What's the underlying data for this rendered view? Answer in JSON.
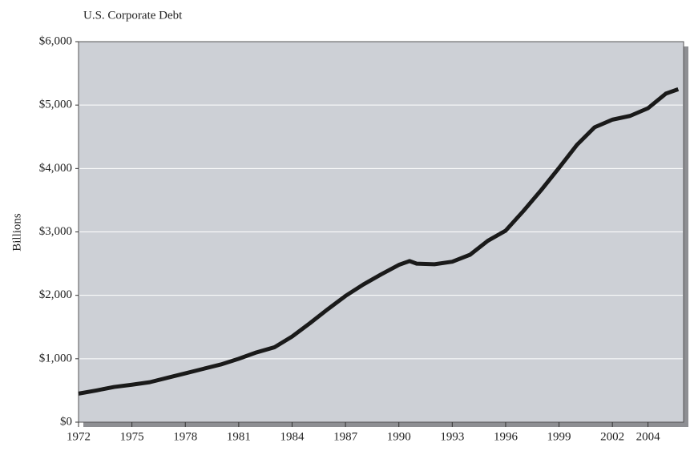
{
  "chart_data": {
    "type": "line",
    "title": "U.S. Corporate Debt",
    "y_label": "Billions",
    "x": [
      1972,
      1973,
      1974,
      1975,
      1976,
      1977,
      1978,
      1979,
      1980,
      1981,
      1982,
      1983,
      1984,
      1985,
      1986,
      1987,
      1988,
      1989,
      1990,
      1990.6,
      1991,
      1992,
      1993,
      1994,
      1995,
      1996,
      1997,
      1998,
      1999,
      2000,
      2001,
      2002,
      2003,
      2004,
      2005,
      2005.7
    ],
    "series": [
      {
        "name": "U.S. Corporate Debt",
        "color": "#1a1a1a",
        "values": [
          450,
          500,
          555,
          590,
          630,
          700,
          770,
          840,
          910,
          1000,
          1100,
          1180,
          1350,
          1560,
          1780,
          1990,
          2170,
          2330,
          2480,
          2540,
          2500,
          2490,
          2530,
          2640,
          2860,
          3020,
          3330,
          3660,
          4010,
          4370,
          4650,
          4770,
          4830,
          4950,
          5180,
          5250
        ]
      }
    ],
    "xlim": [
      1972,
      2006
    ],
    "xticks": [
      1972,
      1975,
      1978,
      1981,
      1984,
      1987,
      1990,
      1993,
      1996,
      1999,
      2002,
      2004
    ],
    "ylim": [
      0,
      6000
    ],
    "yticks": [
      {
        "value": 0,
        "label": "$0"
      },
      {
        "value": 1000,
        "label": "$1,000"
      },
      {
        "value": 2000,
        "label": "$2,000"
      },
      {
        "value": 3000,
        "label": "$3,000"
      },
      {
        "value": 4000,
        "label": "$4,000"
      },
      {
        "value": 5000,
        "label": "$5,000"
      },
      {
        "value": 6000,
        "label": "$6,000"
      }
    ],
    "grid": true
  }
}
